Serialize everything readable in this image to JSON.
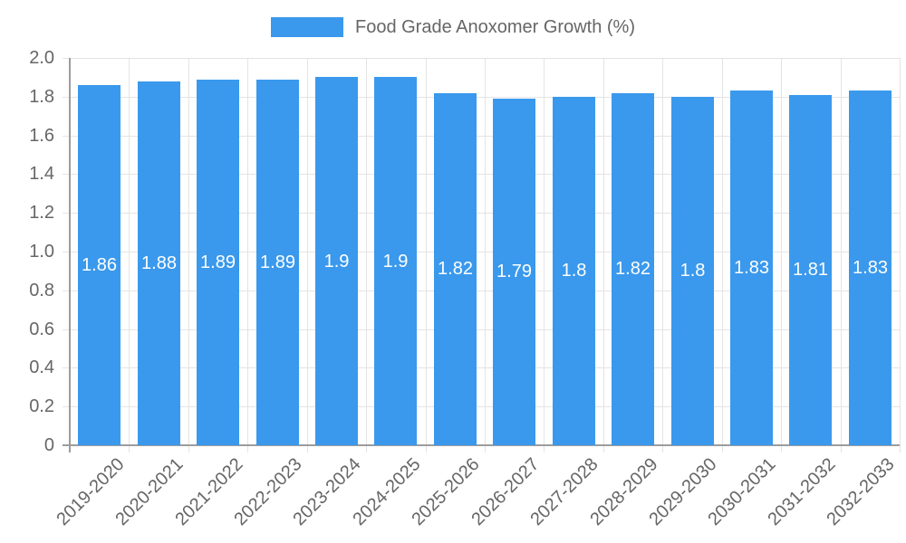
{
  "legend": {
    "label": "Food Grade Anoxomer Growth (%)"
  },
  "chart_data": {
    "type": "bar",
    "title": "Food Grade Anoxomer Growth (%)",
    "categories": [
      "2019-2020",
      "2020-2021",
      "2021-2022",
      "2022-2023",
      "2023-2024",
      "2024-2025",
      "2025-2026",
      "2026-2027",
      "2027-2028",
      "2028-2029",
      "2029-2030",
      "2030-2031",
      "2031-2032",
      "2032-2033"
    ],
    "values": [
      1.86,
      1.88,
      1.89,
      1.89,
      1.9,
      1.9,
      1.82,
      1.79,
      1.8,
      1.82,
      1.8,
      1.83,
      1.81,
      1.83
    ],
    "value_labels": [
      "1.86",
      "1.88",
      "1.89",
      "1.89",
      "1.9",
      "1.9",
      "1.82",
      "1.79",
      "1.8",
      "1.82",
      "1.8",
      "1.83",
      "1.81",
      "1.83"
    ],
    "xlabel": "",
    "ylabel": "",
    "ylim": [
      0,
      2
    ],
    "ytick_labels": [
      "0",
      "0.2",
      "0.4",
      "0.6",
      "0.8",
      "1.0",
      "1.2",
      "1.4",
      "1.6",
      "1.8",
      "2.0"
    ],
    "grid": true,
    "legend_position": "top",
    "value_label_position": "center-of-bar"
  },
  "colors": {
    "bar": "#3A99EC",
    "grid": "#E4E4E4",
    "axis_border": "#9C9C9C",
    "tick_text": "#666666",
    "value_label_text": "#FFFFFF",
    "background": "#FFFFFF"
  }
}
